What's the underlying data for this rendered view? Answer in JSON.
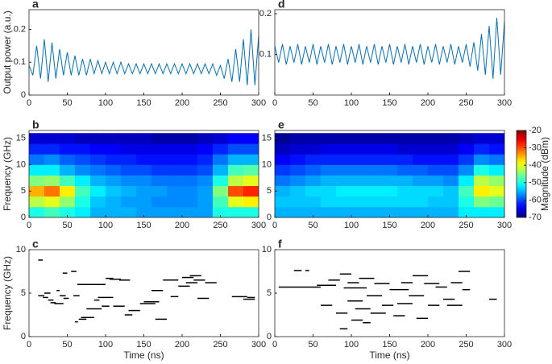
{
  "chart_data": [
    {
      "type": "line",
      "panel": "a",
      "ylabel": "Output power (a.u.)",
      "color": "#0072bd",
      "x": [
        0,
        5,
        10,
        15,
        20,
        25,
        30,
        35,
        40,
        45,
        50,
        55,
        60,
        65,
        70,
        75,
        80,
        85,
        90,
        95,
        100,
        105,
        110,
        115,
        120,
        125,
        130,
        135,
        140,
        145,
        150,
        155,
        160,
        165,
        170,
        175,
        180,
        185,
        190,
        195,
        200,
        205,
        210,
        215,
        220,
        225,
        230,
        235,
        240,
        245,
        250,
        255,
        260,
        265,
        270,
        275,
        280,
        285,
        290,
        295,
        300
      ],
      "values": [
        0.09,
        0.06,
        0.15,
        0.05,
        0.17,
        0.04,
        0.16,
        0.05,
        0.14,
        0.06,
        0.13,
        0.06,
        0.12,
        0.06,
        0.11,
        0.06,
        0.11,
        0.065,
        0.105,
        0.065,
        0.1,
        0.065,
        0.1,
        0.065,
        0.1,
        0.065,
        0.095,
        0.065,
        0.095,
        0.065,
        0.095,
        0.065,
        0.095,
        0.065,
        0.095,
        0.065,
        0.095,
        0.065,
        0.095,
        0.065,
        0.095,
        0.065,
        0.095,
        0.065,
        0.095,
        0.065,
        0.095,
        0.065,
        0.095,
        0.06,
        0.09,
        0.05,
        0.11,
        0.04,
        0.14,
        0.04,
        0.17,
        0.03,
        0.2,
        0.03,
        0.18
      ],
      "xlim": [
        0,
        300
      ],
      "xticks": [
        0,
        50,
        100,
        150,
        200,
        250,
        300
      ],
      "ylim": [
        0,
        0.26
      ],
      "yticks": [
        0,
        0.1,
        0.2
      ]
    },
    {
      "type": "heatmap",
      "panel": "b",
      "ylabel": "Frequency (GHz)",
      "colormap": "jet",
      "clim": [
        -70,
        -20
      ],
      "xbins": [
        0,
        20,
        40,
        60,
        80,
        100,
        120,
        140,
        160,
        180,
        200,
        220,
        240,
        260,
        280,
        300
      ],
      "ybins": [
        0,
        2,
        4,
        6,
        8,
        10,
        12,
        14,
        16
      ],
      "values": [
        [
          -50,
          -48,
          -50,
          -52,
          -55,
          -55,
          -55,
          -56,
          -56,
          -56,
          -56,
          -56,
          -50,
          -50,
          -50
        ],
        [
          -42,
          -40,
          -44,
          -50,
          -54,
          -55,
          -56,
          -56,
          -57,
          -57,
          -57,
          -56,
          -48,
          -40,
          -38
        ],
        [
          -35,
          -32,
          -38,
          -48,
          -52,
          -54,
          -55,
          -56,
          -56,
          -57,
          -57,
          -56,
          -45,
          -30,
          -28
        ],
        [
          -45,
          -44,
          -48,
          -52,
          -55,
          -56,
          -57,
          -57,
          -58,
          -58,
          -58,
          -57,
          -50,
          -42,
          -40
        ],
        [
          -52,
          -52,
          -55,
          -57,
          -58,
          -59,
          -60,
          -60,
          -61,
          -61,
          -61,
          -60,
          -55,
          -48,
          -47
        ],
        [
          -58,
          -57,
          -59,
          -60,
          -61,
          -62,
          -62,
          -63,
          -63,
          -63,
          -63,
          -62,
          -58,
          -55,
          -55
        ],
        [
          -62,
          -62,
          -63,
          -63,
          -64,
          -64,
          -65,
          -65,
          -65,
          -65,
          -65,
          -64,
          -62,
          -60,
          -60
        ],
        [
          -66,
          -66,
          -66,
          -67,
          -67,
          -67,
          -67,
          -67,
          -68,
          -68,
          -68,
          -67,
          -66,
          -64,
          -64
        ]
      ],
      "xlim": [
        0,
        300
      ],
      "xticks": [
        0,
        50,
        100,
        150,
        200,
        250,
        300
      ],
      "ylim": [
        0,
        16.5
      ],
      "yticks": [
        0,
        5,
        10,
        15
      ]
    },
    {
      "type": "segments",
      "panel": "c",
      "ylabel": "Frequency (GHz)",
      "xlabel": "Time (ns)",
      "color": "#000000",
      "x": [
        12,
        12,
        18,
        20,
        25,
        28,
        33,
        36,
        40,
        44,
        45,
        55,
        58,
        60,
        63,
        65,
        68,
        70,
        75,
        85,
        90,
        95,
        100,
        105,
        110,
        118,
        125,
        130,
        145,
        150,
        160,
        165,
        175,
        185,
        195,
        200,
        205,
        210,
        215,
        220,
        230,
        265,
        280,
        285
      ],
      "x_end": [
        18,
        20,
        25,
        28,
        32,
        35,
        45,
        40,
        48,
        50,
        52,
        62,
        66,
        64,
        70,
        75,
        85,
        100,
        95,
        92,
        110,
        105,
        110,
        120,
        125,
        132,
        135,
        145,
        165,
        170,
        175,
        180,
        195,
        195,
        210,
        215,
        220,
        225,
        230,
        235,
        245,
        285,
        295,
        295
      ],
      "values": [
        8.8,
        4.7,
        4.5,
        5.0,
        4.2,
        3.9,
        3.8,
        5.3,
        4.7,
        7.3,
        4.4,
        7.5,
        4.7,
        1.7,
        6.0,
        2.0,
        2.2,
        6.0,
        3.2,
        4.2,
        4.5,
        3.5,
        6.7,
        6.6,
        3.5,
        6.5,
        2.5,
        3.0,
        3.8,
        4.0,
        5.3,
        2.0,
        6.5,
        4.6,
        5.8,
        6.8,
        6.2,
        7.0,
        6.5,
        4.4,
        6.2,
        4.6,
        4.3,
        4.5
      ],
      "xlim": [
        0,
        300
      ],
      "xticks": [
        0,
        50,
        100,
        150,
        200,
        250,
        300
      ],
      "ylim": [
        0,
        10
      ],
      "yticks": [
        0,
        5,
        10
      ]
    },
    {
      "type": "line",
      "panel": "d",
      "color": "#0072bd",
      "x": [
        0,
        5,
        10,
        15,
        20,
        25,
        30,
        35,
        40,
        45,
        50,
        55,
        60,
        65,
        70,
        75,
        80,
        85,
        90,
        95,
        100,
        105,
        110,
        115,
        120,
        125,
        130,
        135,
        140,
        145,
        150,
        155,
        160,
        165,
        170,
        175,
        180,
        185,
        190,
        195,
        200,
        205,
        210,
        215,
        220,
        225,
        230,
        235,
        240,
        245,
        250,
        255,
        260,
        265,
        270,
        275,
        280,
        285,
        290,
        295,
        300
      ],
      "values": [
        0.12,
        0.08,
        0.125,
        0.075,
        0.12,
        0.08,
        0.125,
        0.075,
        0.12,
        0.08,
        0.125,
        0.075,
        0.12,
        0.08,
        0.125,
        0.075,
        0.12,
        0.08,
        0.125,
        0.075,
        0.12,
        0.08,
        0.125,
        0.075,
        0.12,
        0.08,
        0.125,
        0.075,
        0.12,
        0.08,
        0.125,
        0.075,
        0.12,
        0.08,
        0.125,
        0.075,
        0.12,
        0.08,
        0.125,
        0.075,
        0.12,
        0.08,
        0.125,
        0.075,
        0.12,
        0.08,
        0.125,
        0.075,
        0.12,
        0.08,
        0.125,
        0.07,
        0.13,
        0.06,
        0.15,
        0.05,
        0.17,
        0.04,
        0.19,
        0.05,
        0.18
      ],
      "xlim": [
        0,
        300
      ],
      "xticks": [
        0,
        50,
        100,
        150,
        200,
        250,
        300
      ],
      "ylim": [
        0,
        0.21
      ],
      "yticks": [
        0.1,
        0.2
      ]
    },
    {
      "type": "heatmap",
      "panel": "e",
      "colormap": "jet",
      "clim": [
        -70,
        -20
      ],
      "xbins": [
        0,
        20,
        40,
        60,
        80,
        100,
        120,
        140,
        160,
        180,
        200,
        220,
        240,
        260,
        280,
        300
      ],
      "ybins": [
        0,
        2,
        4,
        6,
        8,
        10,
        12,
        14,
        16
      ],
      "values": [
        [
          -55,
          -55,
          -55,
          -55,
          -55,
          -55,
          -55,
          -55,
          -55,
          -55,
          -55,
          -55,
          -52,
          -52,
          -52
        ],
        [
          -54,
          -54,
          -54,
          -53,
          -53,
          -53,
          -53,
          -53,
          -53,
          -53,
          -54,
          -54,
          -50,
          -45,
          -46
        ],
        [
          -55,
          -54,
          -53,
          -53,
          -52,
          -52,
          -52,
          -52,
          -53,
          -53,
          -53,
          -54,
          -48,
          -38,
          -40
        ],
        [
          -58,
          -57,
          -56,
          -55,
          -55,
          -55,
          -55,
          -55,
          -55,
          -56,
          -56,
          -57,
          -52,
          -42,
          -44
        ],
        [
          -61,
          -60,
          -59,
          -58,
          -58,
          -58,
          -58,
          -58,
          -59,
          -59,
          -60,
          -60,
          -57,
          -50,
          -52
        ],
        [
          -64,
          -63,
          -62,
          -62,
          -62,
          -62,
          -62,
          -62,
          -62,
          -63,
          -63,
          -63,
          -61,
          -57,
          -58
        ],
        [
          -67,
          -66,
          -66,
          -65,
          -65,
          -65,
          -65,
          -65,
          -66,
          -66,
          -66,
          -66,
          -64,
          -62,
          -63
        ],
        [
          -69,
          -68,
          -68,
          -68,
          -68,
          -68,
          -68,
          -68,
          -68,
          -68,
          -68,
          -68,
          -67,
          -66,
          -66
        ]
      ],
      "xlim": [
        0,
        300
      ],
      "xticks": [
        0,
        50,
        100,
        150,
        200,
        250,
        300
      ],
      "ylim": [
        0,
        16.5
      ],
      "yticks": [
        0,
        5,
        10,
        15
      ],
      "colorbar": {
        "label": "Magnitude (dBm)",
        "lim": [
          -70,
          -20
        ],
        "ticks": [
          -70,
          -60,
          -50,
          -40,
          -30,
          -20
        ]
      }
    },
    {
      "type": "segments",
      "panel": "f",
      "xlabel": "Time (ns)",
      "color": "#000000",
      "x": [
        5,
        25,
        40,
        55,
        60,
        70,
        80,
        85,
        85,
        90,
        95,
        95,
        100,
        105,
        110,
        115,
        120,
        125,
        130,
        140,
        150,
        155,
        160,
        165,
        175,
        180,
        185,
        195,
        200,
        210,
        220,
        225,
        230,
        240,
        245,
        280
      ],
      "x_end": [
        60,
        35,
        45,
        80,
        75,
        85,
        95,
        95,
        100,
        120,
        110,
        115,
        115,
        125,
        130,
        125,
        140,
        145,
        150,
        155,
        175,
        170,
        180,
        180,
        195,
        200,
        200,
        215,
        215,
        225,
        235,
        245,
        245,
        255,
        255,
        290
      ],
      "values": [
        5.7,
        7.6,
        7.6,
        5.9,
        3.6,
        6.5,
        2.7,
        0.9,
        7.2,
        5.6,
        6.2,
        4.1,
        1.9,
        3.2,
        6.7,
        1.6,
        4.7,
        2.7,
        6.1,
        3.6,
        5.4,
        2.4,
        3.8,
        6.2,
        4.7,
        7.0,
        2.1,
        6.1,
        3.6,
        5.7,
        4.3,
        3.6,
        6.2,
        7.5,
        5.4,
        4.3
      ],
      "xlim": [
        0,
        300
      ],
      "xticks": [
        0,
        50,
        100,
        150,
        200,
        250,
        300
      ],
      "ylim": [
        0,
        10
      ],
      "yticks": [
        0,
        5,
        10
      ]
    }
  ]
}
